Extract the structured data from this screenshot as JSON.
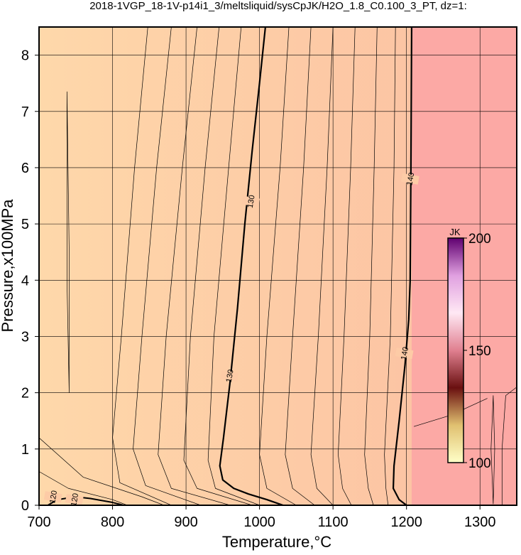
{
  "chart_data": {
    "type": "contour",
    "title": "2018-1VGP_18-1V-p14i1_3/meltsliquid/sysCpJK/H2O_1.8_C0.100_3_PT, dz=1:",
    "x_label": "Temperature,°C",
    "y_label": "Pressure,x100MPa",
    "xlim": [
      700,
      1350
    ],
    "ylim": [
      0,
      8.5
    ],
    "xticks": [
      700,
      800,
      900,
      1000,
      1100,
      1200,
      1300
    ],
    "yticks": [
      0,
      1,
      2,
      3,
      4,
      5,
      6,
      7,
      8
    ],
    "grid": true,
    "background_colors": [
      "#fed8aa",
      "#fcbfa2"
    ],
    "region": {
      "x": [
        1207,
        1350
      ],
      "color": "#fca9a5"
    },
    "contours": [
      {
        "level": 120,
        "width": 2,
        "x": [
          712,
          725,
          750,
          770,
          800,
          815
        ],
        "y": [
          0,
          0.1,
          0.15,
          0.12,
          0.05,
          0
        ],
        "label_x": [
          719,
          748
        ],
        "label_y": [
          0.15,
          0.1
        ]
      },
      {
        "level": 130,
        "width": 2.2,
        "x": [
          1008,
          1000,
          990,
          980,
          970,
          960,
          951,
          946,
          950,
          965,
          985,
          1010,
          1032
        ],
        "y": [
          8.5,
          7.5,
          6.3,
          5,
          3.5,
          2.2,
          1.2,
          0.7,
          0.45,
          0.3,
          0.2,
          0.1,
          0
        ],
        "label_x": [
          988,
          959
        ],
        "label_y": [
          5.4,
          2.3
        ]
      },
      {
        "level": 140,
        "width": 2.2,
        "x": [
          1207,
          1206,
          1205,
          1203,
          1198,
          1190,
          1183,
          1182,
          1190,
          1200
        ],
        "y": [
          8.5,
          6,
          4,
          3.3,
          2.5,
          1.5,
          0.7,
          0.3,
          0.1,
          0
        ],
        "label_x": [
          1205,
          1197
        ],
        "label_y": [
          5.8,
          2.7
        ]
      }
    ],
    "thin_contours": [
      {
        "x": [
          741,
          738,
          738,
          741,
          741
        ],
        "y": [
          2,
          4,
          7.35,
          4.5,
          2
        ]
      },
      {
        "x": [
          1318,
          1315,
          1318,
          1320,
          1318
        ],
        "y": [
          0.02,
          1,
          1.95,
          1,
          0.02
        ]
      },
      {
        "x": [
          700,
          740,
          800,
          820
        ],
        "y": [
          0.6,
          0.3,
          0.1,
          0
        ]
      },
      {
        "x": [
          700,
          760,
          840,
          870
        ],
        "y": [
          1.2,
          0.5,
          0.15,
          0
        ]
      },
      {
        "x": [
          848,
          830,
          812,
          800,
          810,
          880
        ],
        "y": [
          8.5,
          6,
          3,
          1.2,
          0.4,
          0
        ]
      },
      {
        "x": [
          880,
          860,
          840,
          828,
          845,
          920
        ],
        "y": [
          8.5,
          6,
          3,
          1.0,
          0.35,
          0
        ]
      },
      {
        "x": [
          915,
          895,
          873,
          862,
          880,
          960
        ],
        "y": [
          8.5,
          6,
          3,
          0.9,
          0.3,
          0
        ]
      },
      {
        "x": [
          945,
          926,
          906,
          897,
          915,
          990
        ],
        "y": [
          8.5,
          6,
          3,
          0.8,
          0.3,
          0
        ]
      },
      {
        "x": [
          975,
          958,
          938,
          930,
          940,
          1000
        ],
        "y": [
          8.5,
          6,
          3,
          0.8,
          0.3,
          0
        ]
      },
      {
        "x": [
          1040,
          1028,
          1010,
          1000,
          1010,
          1050
        ],
        "y": [
          8.5,
          6,
          3,
          0.9,
          0.3,
          0
        ]
      },
      {
        "x": [
          1070,
          1060,
          1045,
          1035,
          1045,
          1075
        ],
        "y": [
          8.5,
          6,
          3,
          0.9,
          0.3,
          0
        ]
      },
      {
        "x": [
          1100,
          1092,
          1080,
          1070,
          1078,
          1100
        ],
        "y": [
          8.5,
          6,
          3,
          0.9,
          0.3,
          0
        ]
      },
      {
        "x": [
          1130,
          1124,
          1115,
          1107,
          1113,
          1125
        ],
        "y": [
          8.5,
          6,
          3,
          0.9,
          0.3,
          0
        ]
      },
      {
        "x": [
          1160,
          1156,
          1150,
          1143,
          1148,
          1155
        ],
        "y": [
          8.5,
          6,
          3,
          0.9,
          0.3,
          0
        ]
      },
      {
        "x": [
          1185,
          1183,
          1178,
          1170,
          1172,
          1175
        ],
        "y": [
          8.5,
          6,
          3,
          0.9,
          0.3,
          0
        ]
      },
      {
        "x": [
          1350,
          1335,
          1330,
          1330
        ],
        "y": [
          2.1,
          1.95,
          1,
          0
        ]
      },
      {
        "x": [
          1210,
          1260,
          1310
        ],
        "y": [
          1.4,
          1.6,
          1.9
        ]
      }
    ],
    "colorbar": {
      "title": "JK",
      "lim": [
        100,
        200
      ],
      "ticks": [
        100,
        150,
        200
      ],
      "colors": [
        "#ffffc8",
        "#e0c070",
        "#6a1010",
        "#e08090",
        "#ffe8f4",
        "#e0a0e0",
        "#600070"
      ]
    }
  }
}
